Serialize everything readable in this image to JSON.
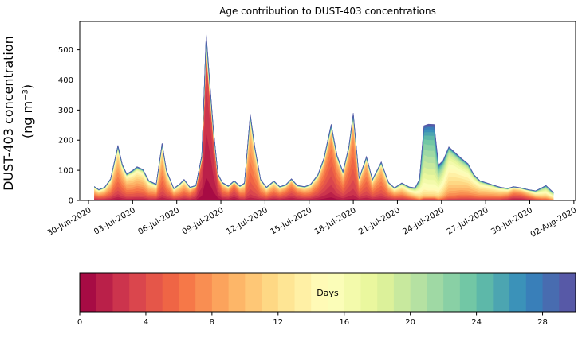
{
  "title": "Age contribution to DUST-403 concentrations",
  "y_axis": {
    "label_line1": "DUST-403 concentration",
    "label_line2": "(ng m⁻³)",
    "ticks": [
      0,
      100,
      200,
      300,
      400,
      500
    ],
    "range": [
      0,
      594
    ]
  },
  "x_axis": {
    "tick_labels": [
      "30-Jun-2020",
      "03-Jul-2020",
      "06-Jul-2020",
      "09-Jul-2020",
      "12-Jul-2020",
      "15-Jul-2020",
      "18-Jul-2020",
      "21-Jul-2020",
      "24-Jul-2020",
      "27-Jul-2020",
      "30-Jul-2020",
      "02-Aug-2020"
    ],
    "tick_days": [
      0,
      3,
      6,
      9,
      12,
      15,
      18,
      21,
      24,
      27,
      30,
      33
    ]
  },
  "colorbar": {
    "label": "Days",
    "ticks": [
      0,
      4,
      8,
      12,
      16,
      20,
      24,
      28
    ],
    "range": [
      0,
      30
    ],
    "n_segments": 30
  },
  "colors": {
    "background": "#ffffff",
    "axis": "#000000",
    "text": "#000000",
    "colormap_name": "Spectral (0 days = dark red, 30 days = dark blue)",
    "colormap_anchors": [
      [
        0.0,
        "#9e0142"
      ],
      [
        0.1,
        "#d53e4f"
      ],
      [
        0.2,
        "#f46d43"
      ],
      [
        0.3,
        "#fdae61"
      ],
      [
        0.4,
        "#fee08b"
      ],
      [
        0.5,
        "#ffffbf"
      ],
      [
        0.6,
        "#e6f598"
      ],
      [
        0.7,
        "#abdda4"
      ],
      [
        0.8,
        "#66c2a5"
      ],
      [
        0.9,
        "#3288bd"
      ],
      [
        1.0,
        "#5e4fa2"
      ]
    ]
  },
  "chart_data": {
    "type": "area",
    "stacked": true,
    "title": "Age contribution to DUST-403 concentrations",
    "ylabel": "DUST-403 concentration (ng m⁻³)",
    "xlabel": "",
    "ylim": [
      0,
      594
    ],
    "legend": "colorbar (Days, 0-30)",
    "grid": false,
    "n_age_bands": 30,
    "age_band_width_days": 1,
    "baseline_weight": 0.005,
    "x_unit": "days since 30-Jun-2020",
    "y_unit": "ng m⁻³",
    "point_format": [
      "day_offset",
      "total_concentration",
      "mean_age_days",
      "age_spread_days"
    ],
    "points": [
      [
        0.4,
        46,
        7,
        5
      ],
      [
        0.7,
        36,
        7,
        5
      ],
      [
        1.1,
        44,
        7,
        5
      ],
      [
        1.5,
        72,
        7,
        4.5
      ],
      [
        2.0,
        183,
        7,
        4
      ],
      [
        2.3,
        120,
        7,
        4
      ],
      [
        2.6,
        88,
        7.5,
        4.5
      ],
      [
        3.0,
        100,
        8,
        5
      ],
      [
        3.3,
        112,
        8,
        5
      ],
      [
        3.7,
        103,
        8,
        5
      ],
      [
        4.1,
        66,
        8,
        5
      ],
      [
        4.6,
        54,
        7.5,
        5
      ],
      [
        5.0,
        190,
        7,
        3.5
      ],
      [
        5.3,
        100,
        7,
        4
      ],
      [
        5.8,
        40,
        7,
        4.5
      ],
      [
        6.2,
        55,
        7,
        4.5
      ],
      [
        6.5,
        70,
        6.5,
        4.5
      ],
      [
        6.9,
        44,
        6,
        4
      ],
      [
        7.3,
        50,
        4,
        2.5
      ],
      [
        7.7,
        150,
        2.5,
        1.5
      ],
      [
        8.0,
        555,
        2,
        1.2
      ],
      [
        8.3,
        360,
        2,
        1.2
      ],
      [
        8.5,
        235,
        2.2,
        1.4
      ],
      [
        8.8,
        88,
        3,
        2.5
      ],
      [
        9.1,
        60,
        5,
        4
      ],
      [
        9.5,
        48,
        5,
        4.5
      ],
      [
        9.9,
        66,
        3.5,
        3
      ],
      [
        10.3,
        48,
        6,
        4
      ],
      [
        10.6,
        58,
        7,
        4
      ],
      [
        11.0,
        287,
        7,
        2.8
      ],
      [
        11.3,
        180,
        7,
        3
      ],
      [
        11.7,
        70,
        7,
        4
      ],
      [
        12.1,
        44,
        7,
        4.5
      ],
      [
        12.6,
        65,
        6,
        4.5
      ],
      [
        13.0,
        46,
        6,
        4.5
      ],
      [
        13.4,
        52,
        5,
        4
      ],
      [
        13.8,
        72,
        4.5,
        3.5
      ],
      [
        14.2,
        50,
        5,
        4
      ],
      [
        14.7,
        46,
        6,
        4.5
      ],
      [
        15.1,
        54,
        6,
        4.5
      ],
      [
        15.6,
        86,
        5.5,
        4
      ],
      [
        16.0,
        140,
        5,
        3.2
      ],
      [
        16.5,
        253,
        4.8,
        2.8
      ],
      [
        16.9,
        150,
        5.5,
        3
      ],
      [
        17.3,
        96,
        6,
        3.5
      ],
      [
        17.7,
        180,
        5.5,
        2.8
      ],
      [
        18.0,
        290,
        5.5,
        2.5
      ],
      [
        18.4,
        75,
        6,
        3.5
      ],
      [
        18.9,
        146,
        6,
        3
      ],
      [
        19.3,
        70,
        6.5,
        4
      ],
      [
        19.9,
        128,
        6.5,
        3.2
      ],
      [
        20.4,
        60,
        7,
        4.5
      ],
      [
        20.8,
        42,
        7.5,
        5
      ],
      [
        21.3,
        58,
        8.5,
        5.5
      ],
      [
        21.8,
        45,
        10,
        6
      ],
      [
        22.2,
        42,
        12,
        6
      ],
      [
        22.5,
        70,
        16,
        5
      ],
      [
        22.8,
        248,
        20,
        4.5
      ],
      [
        23.1,
        253,
        20.5,
        4.5
      ],
      [
        23.5,
        252,
        20.5,
        4.5
      ],
      [
        23.8,
        118,
        18,
        5
      ],
      [
        24.1,
        132,
        16,
        5
      ],
      [
        24.5,
        178,
        13.5,
        4.5
      ],
      [
        24.9,
        160,
        13,
        4.5
      ],
      [
        25.3,
        142,
        12.5,
        5
      ],
      [
        25.8,
        122,
        12,
        5
      ],
      [
        26.2,
        86,
        11,
        5
      ],
      [
        26.6,
        66,
        10.5,
        5
      ],
      [
        27.1,
        58,
        10,
        5
      ],
      [
        27.6,
        50,
        9.5,
        5
      ],
      [
        28.0,
        44,
        9,
        5
      ],
      [
        28.5,
        40,
        7,
        5.5
      ],
      [
        28.9,
        46,
        5,
        5
      ],
      [
        29.4,
        42,
        5,
        5
      ],
      [
        29.9,
        36,
        7,
        5.5
      ],
      [
        30.4,
        32,
        10,
        6
      ],
      [
        30.8,
        42,
        13,
        6
      ],
      [
        31.1,
        50,
        14,
        6
      ],
      [
        31.4,
        36,
        14.5,
        6
      ],
      [
        31.6,
        27,
        15,
        6
      ]
    ]
  }
}
